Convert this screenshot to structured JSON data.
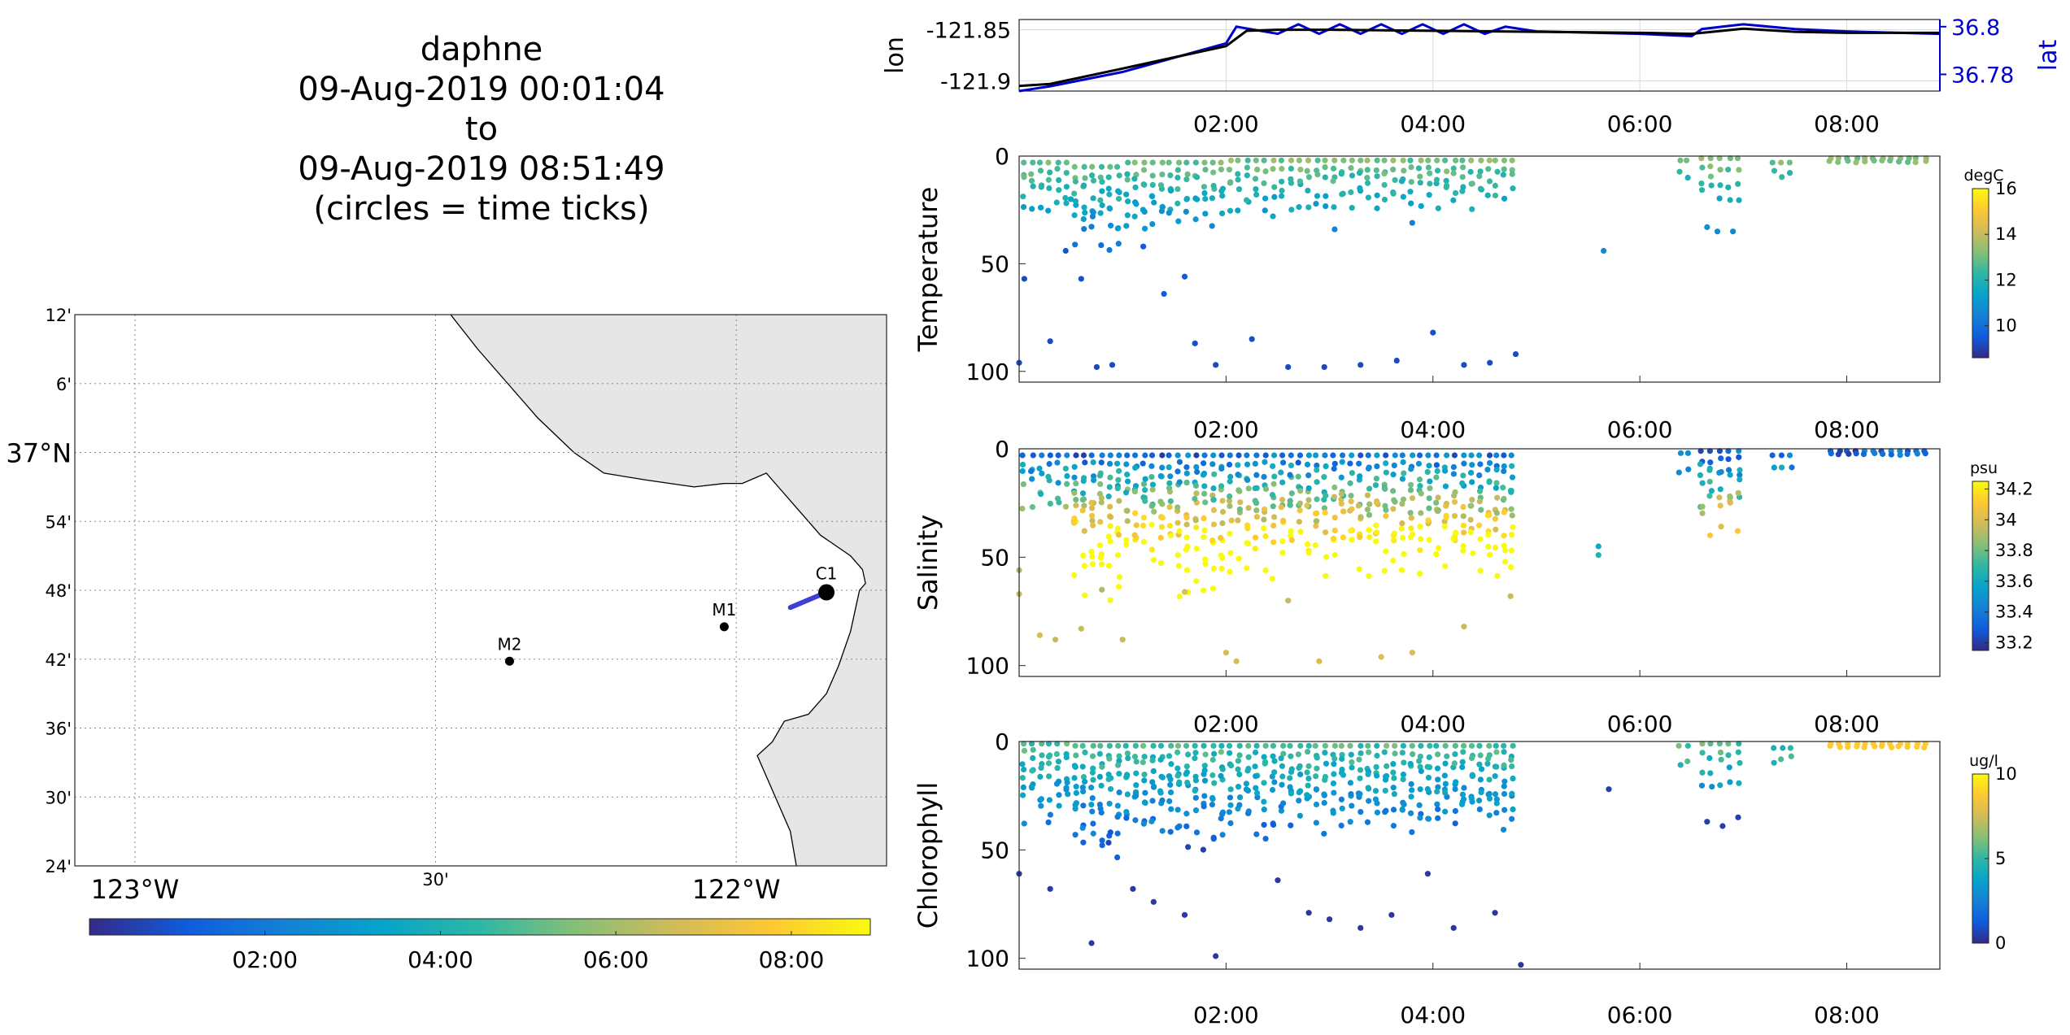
{
  "title": {
    "lines": [
      "daphne",
      "09-Aug-2019 00:01:04",
      "to",
      "09-Aug-2019 08:51:49",
      "(circles = time ticks)"
    ]
  },
  "colors": {
    "land": "#e6e6e6",
    "coast": "#000000",
    "lon_series": "#000000",
    "lat_series": "#0000cc",
    "grid": "#d9d9d9",
    "parula": [
      "#352a87",
      "#0f5cdd",
      "#1481d6",
      "#06a4ca",
      "#2eb7a4",
      "#87bf77",
      "#d1bb59",
      "#fec832",
      "#f9fb0e"
    ]
  },
  "chart_data": [
    {
      "id": "map",
      "type": "scatter",
      "title": "",
      "x_ticks": {
        "labels": [
          "123°W",
          "30'",
          "122°W"
        ],
        "values": [
          -123.0,
          -122.5,
          -122.0
        ]
      },
      "y_ticks": {
        "labels": [
          "24'",
          "30'",
          "36'",
          "42'",
          "48'",
          "54'",
          "37°N",
          "6'",
          "12'"
        ],
        "values": [
          36.4,
          36.5,
          36.6,
          36.7,
          36.8,
          36.9,
          37.0,
          37.1,
          37.2
        ]
      },
      "xlim": [
        -123.1,
        -121.75
      ],
      "ylim": [
        36.4,
        37.2
      ],
      "grid": true,
      "stations": [
        {
          "name": "C1",
          "lon": -121.85,
          "lat": 36.797
        },
        {
          "name": "M1",
          "lon": -122.02,
          "lat": 36.747
        },
        {
          "name": "M2",
          "lon": -122.377,
          "lat": 36.697
        }
      ],
      "track": {
        "start": {
          "lon": -121.91,
          "lat": 36.775
        },
        "end": {
          "lon": -121.85,
          "lat": 36.797
        }
      },
      "colorbar": {
        "labels": [
          "02:00",
          "04:00",
          "06:00",
          "08:00"
        ],
        "hours": [
          2,
          4,
          6,
          8
        ],
        "range_hours": [
          0,
          8.9
        ]
      }
    },
    {
      "id": "lonlat",
      "type": "line",
      "ylabel": "lon",
      "ylabel_right": "lat",
      "y_ticks": {
        "labels": [
          "-121.85",
          "-121.9"
        ],
        "values": [
          -121.85,
          -121.9
        ]
      },
      "y_ticks_right": {
        "labels": [
          "36.8",
          "36.78"
        ],
        "values": [
          36.8,
          36.78
        ]
      },
      "ylim": [
        -121.91,
        -121.84
      ],
      "ylim_right": [
        36.773,
        36.803
      ],
      "x_ticks": {
        "labels": [
          "02:00",
          "04:00",
          "06:00",
          "08:00"
        ],
        "hours": [
          2,
          4,
          6,
          8
        ]
      },
      "xlim_hours": [
        0,
        8.9
      ],
      "series": [
        {
          "name": "lon",
          "points": [
            [
              0.0,
              -121.905
            ],
            [
              0.3,
              -121.903
            ],
            [
              1.0,
              -121.888
            ],
            [
              1.5,
              -121.877
            ],
            [
              2.0,
              -121.866
            ],
            [
              2.2,
              -121.851
            ],
            [
              2.5,
              -121.85
            ],
            [
              3.0,
              -121.85
            ],
            [
              4.0,
              -121.851
            ],
            [
              5.0,
              -121.852
            ],
            [
              6.0,
              -121.853
            ],
            [
              6.5,
              -121.854
            ],
            [
              6.7,
              -121.852
            ],
            [
              7.0,
              -121.849
            ],
            [
              7.5,
              -121.852
            ],
            [
              8.0,
              -121.853
            ],
            [
              8.9,
              -121.853
            ]
          ]
        },
        {
          "name": "lat",
          "points": [
            [
              0.0,
              36.773
            ],
            [
              0.3,
              36.775
            ],
            [
              1.0,
              36.781
            ],
            [
              1.5,
              36.787
            ],
            [
              2.0,
              36.793
            ],
            [
              2.1,
              36.8
            ],
            [
              2.5,
              36.797
            ],
            [
              2.7,
              36.801
            ],
            [
              2.9,
              36.797
            ],
            [
              3.1,
              36.801
            ],
            [
              3.3,
              36.797
            ],
            [
              3.5,
              36.801
            ],
            [
              3.7,
              36.797
            ],
            [
              3.9,
              36.801
            ],
            [
              4.1,
              36.797
            ],
            [
              4.3,
              36.801
            ],
            [
              4.5,
              36.797
            ],
            [
              4.7,
              36.8
            ],
            [
              5.0,
              36.798
            ],
            [
              6.0,
              36.797
            ],
            [
              6.5,
              36.796
            ],
            [
              6.6,
              36.799
            ],
            [
              6.8,
              36.8
            ],
            [
              7.0,
              36.801
            ],
            [
              7.5,
              36.799
            ],
            [
              8.0,
              36.798
            ],
            [
              8.9,
              36.797
            ]
          ]
        }
      ]
    },
    {
      "id": "temperature",
      "type": "scatter",
      "ylabel": "Temperature",
      "y_ticks": {
        "labels": [
          "0",
          "50",
          "100"
        ],
        "values": [
          0,
          50,
          100
        ]
      },
      "ylim": [
        0,
        105
      ],
      "x_ticks": {
        "labels": [
          "02:00",
          "04:00",
          "06:00",
          "08:00"
        ],
        "hours": [
          2,
          4,
          6,
          8
        ]
      },
      "xlim_hours": [
        0,
        8.9
      ],
      "colorbar": {
        "unit": "degC",
        "labels": [
          "10",
          "12",
          "14",
          "16"
        ],
        "values": [
          10,
          12,
          14,
          16
        ],
        "range": [
          8.6,
          16
        ]
      },
      "depth_spans": [
        [
          0.0,
          0.5,
          3,
          26,
          "value"
        ],
        [
          0.5,
          1.0,
          5,
          45,
          "value"
        ],
        [
          1.0,
          1.5,
          3,
          40,
          "value"
        ],
        [
          1.5,
          2.0,
          3,
          35,
          "value"
        ],
        [
          2.0,
          2.5,
          2,
          28,
          "value"
        ],
        [
          2.5,
          3.0,
          2,
          25,
          "value"
        ],
        [
          3.0,
          3.5,
          2,
          25,
          "value"
        ],
        [
          3.5,
          4.0,
          2,
          25,
          "value"
        ],
        [
          4.0,
          4.5,
          2,
          25,
          "value"
        ],
        [
          4.5,
          4.8,
          2,
          20,
          "value"
        ],
        [
          6.35,
          6.5,
          2,
          12,
          "value"
        ],
        [
          6.55,
          7.0,
          1,
          22,
          "value"
        ],
        [
          7.25,
          7.5,
          3,
          10,
          "value"
        ],
        [
          7.8,
          8.8,
          1,
          3,
          "value"
        ]
      ],
      "deep_points": [
        [
          0.05,
          57,
          9.2
        ],
        [
          0.3,
          86,
          9.2
        ],
        [
          0.45,
          44,
          9.4
        ],
        [
          0.6,
          57,
          9.3
        ],
        [
          0.75,
          98,
          9.2
        ],
        [
          0.9,
          97,
          9.2
        ],
        [
          0.5,
          20,
          11.4
        ],
        [
          1.2,
          42,
          9.5
        ],
        [
          1.4,
          64,
          9.5
        ],
        [
          1.7,
          87,
          9.3
        ],
        [
          1.9,
          97,
          9.2
        ],
        [
          2.25,
          85,
          9.3
        ],
        [
          2.6,
          98,
          9.2
        ],
        [
          2.95,
          98,
          9.1
        ],
        [
          3.3,
          97,
          9.2
        ],
        [
          3.65,
          95,
          9.2
        ],
        [
          4.0,
          82,
          9.3
        ],
        [
          4.3,
          97,
          9.2
        ],
        [
          4.55,
          96,
          9.2
        ],
        [
          4.8,
          92,
          9.2
        ],
        [
          3.05,
          34,
          10.5
        ],
        [
          3.8,
          31,
          10.4
        ],
        [
          5.65,
          44,
          10.6
        ],
        [
          6.65,
          33,
          10.8
        ],
        [
          6.75,
          35,
          10.7
        ],
        [
          6.9,
          35,
          10.6
        ],
        [
          1.6,
          56,
          9.5
        ],
        [
          0.0,
          96,
          9.2
        ]
      ]
    },
    {
      "id": "salinity",
      "type": "scatter",
      "ylabel": "Salinity",
      "y_ticks": {
        "labels": [
          "0",
          "50",
          "100"
        ],
        "values": [
          0,
          50,
          100
        ]
      },
      "ylim": [
        0,
        105
      ],
      "x_ticks": {
        "labels": [
          "02:00",
          "04:00",
          "06:00",
          "08:00"
        ],
        "hours": [
          2,
          4,
          6,
          8
        ]
      },
      "xlim_hours": [
        0,
        8.9
      ],
      "colorbar": {
        "unit": "psu",
        "labels": [
          "33.2",
          "33.4",
          "33.6",
          "33.8",
          "34",
          "34.2"
        ],
        "values": [
          33.2,
          33.4,
          33.6,
          33.8,
          34.0,
          34.2
        ],
        "range": [
          33.15,
          34.25
        ]
      },
      "depth_spans": [
        [
          0.0,
          0.5,
          3,
          30,
          "value"
        ],
        [
          0.5,
          1.0,
          3,
          70,
          "value"
        ],
        [
          1.0,
          1.5,
          3,
          60,
          "value"
        ],
        [
          1.5,
          2.0,
          3,
          70,
          "value"
        ],
        [
          2.0,
          2.5,
          3,
          60,
          "value"
        ],
        [
          2.5,
          3.0,
          3,
          60,
          "value"
        ],
        [
          3.0,
          3.5,
          3,
          60,
          "value"
        ],
        [
          3.5,
          4.0,
          3,
          60,
          "value"
        ],
        [
          4.0,
          4.5,
          3,
          60,
          "value"
        ],
        [
          4.5,
          4.8,
          3,
          65,
          "value"
        ],
        [
          6.35,
          6.5,
          2,
          12,
          "value"
        ],
        [
          6.55,
          7.0,
          1,
          40,
          "value"
        ],
        [
          7.25,
          7.5,
          3,
          10,
          "value"
        ],
        [
          7.8,
          8.8,
          1,
          3,
          "value"
        ]
      ],
      "deep_points": [
        [
          0.0,
          56,
          33.9
        ],
        [
          0.0,
          67,
          33.95
        ],
        [
          0.2,
          86,
          34.0
        ],
        [
          0.35,
          88,
          33.95
        ],
        [
          0.6,
          83,
          33.95
        ],
        [
          0.8,
          65,
          33.9
        ],
        [
          1.0,
          88,
          33.95
        ],
        [
          2.0,
          94,
          34.0
        ],
        [
          2.1,
          98,
          34.0
        ],
        [
          2.9,
          98,
          34.0
        ],
        [
          3.5,
          96,
          34.0
        ],
        [
          3.8,
          94,
          34.0
        ],
        [
          4.3,
          82,
          33.95
        ],
        [
          4.75,
          68,
          33.95
        ],
        [
          5.6,
          45,
          33.6
        ],
        [
          5.6,
          49,
          33.65
        ],
        [
          1.6,
          66,
          34.0
        ],
        [
          2.6,
          70,
          33.95
        ]
      ]
    },
    {
      "id": "chlorophyll",
      "type": "scatter",
      "ylabel": "Chlorophyll",
      "y_ticks": {
        "labels": [
          "0",
          "50",
          "100"
        ],
        "values": [
          0,
          50,
          100
        ]
      },
      "ylim": [
        0,
        105
      ],
      "x_ticks": {
        "labels": [
          "02:00",
          "04:00",
          "06:00",
          "08:00"
        ],
        "hours": [
          2,
          4,
          6,
          8
        ]
      },
      "xlim_hours": [
        0,
        8.9
      ],
      "colorbar": {
        "unit": "ug/l",
        "labels": [
          "0",
          "5",
          "10"
        ],
        "values": [
          0,
          5,
          10
        ],
        "range": [
          0,
          10
        ]
      },
      "depth_spans": [
        [
          0.0,
          0.5,
          1,
          40,
          "value"
        ],
        [
          0.5,
          1.0,
          2,
          55,
          "value"
        ],
        [
          1.0,
          1.5,
          2,
          50,
          "value"
        ],
        [
          1.5,
          2.0,
          2,
          50,
          "value"
        ],
        [
          2.0,
          2.5,
          2,
          45,
          "value"
        ],
        [
          2.5,
          3.0,
          2,
          45,
          "value"
        ],
        [
          3.0,
          3.5,
          2,
          45,
          "value"
        ],
        [
          3.5,
          4.0,
          2,
          45,
          "value"
        ],
        [
          4.0,
          4.5,
          2,
          45,
          "value"
        ],
        [
          4.5,
          4.8,
          2,
          45,
          "value"
        ],
        [
          6.35,
          6.5,
          2,
          12,
          "value"
        ],
        [
          6.55,
          7.0,
          1,
          22,
          "value"
        ],
        [
          7.25,
          7.5,
          3,
          10,
          "value"
        ],
        [
          7.8,
          8.8,
          1,
          3,
          "value"
        ]
      ],
      "deep_points": [
        [
          0.0,
          61,
          0.4
        ],
        [
          0.3,
          68,
          0.4
        ],
        [
          0.7,
          93,
          0.3
        ],
        [
          1.1,
          68,
          0.4
        ],
        [
          1.3,
          74,
          0.4
        ],
        [
          1.6,
          80,
          0.4
        ],
        [
          1.9,
          99,
          0.3
        ],
        [
          2.5,
          64,
          0.4
        ],
        [
          2.8,
          79,
          0.3
        ],
        [
          3.0,
          82,
          0.3
        ],
        [
          3.3,
          86,
          0.3
        ],
        [
          3.6,
          80,
          0.3
        ],
        [
          3.95,
          61,
          0.4
        ],
        [
          4.2,
          86,
          0.3
        ],
        [
          4.6,
          79,
          0.3
        ],
        [
          4.85,
          103,
          0.3
        ],
        [
          5.7,
          22,
          0.6
        ],
        [
          6.65,
          37,
          0.5
        ],
        [
          6.8,
          39,
          0.5
        ],
        [
          6.95,
          35,
          0.5
        ]
      ]
    }
  ]
}
